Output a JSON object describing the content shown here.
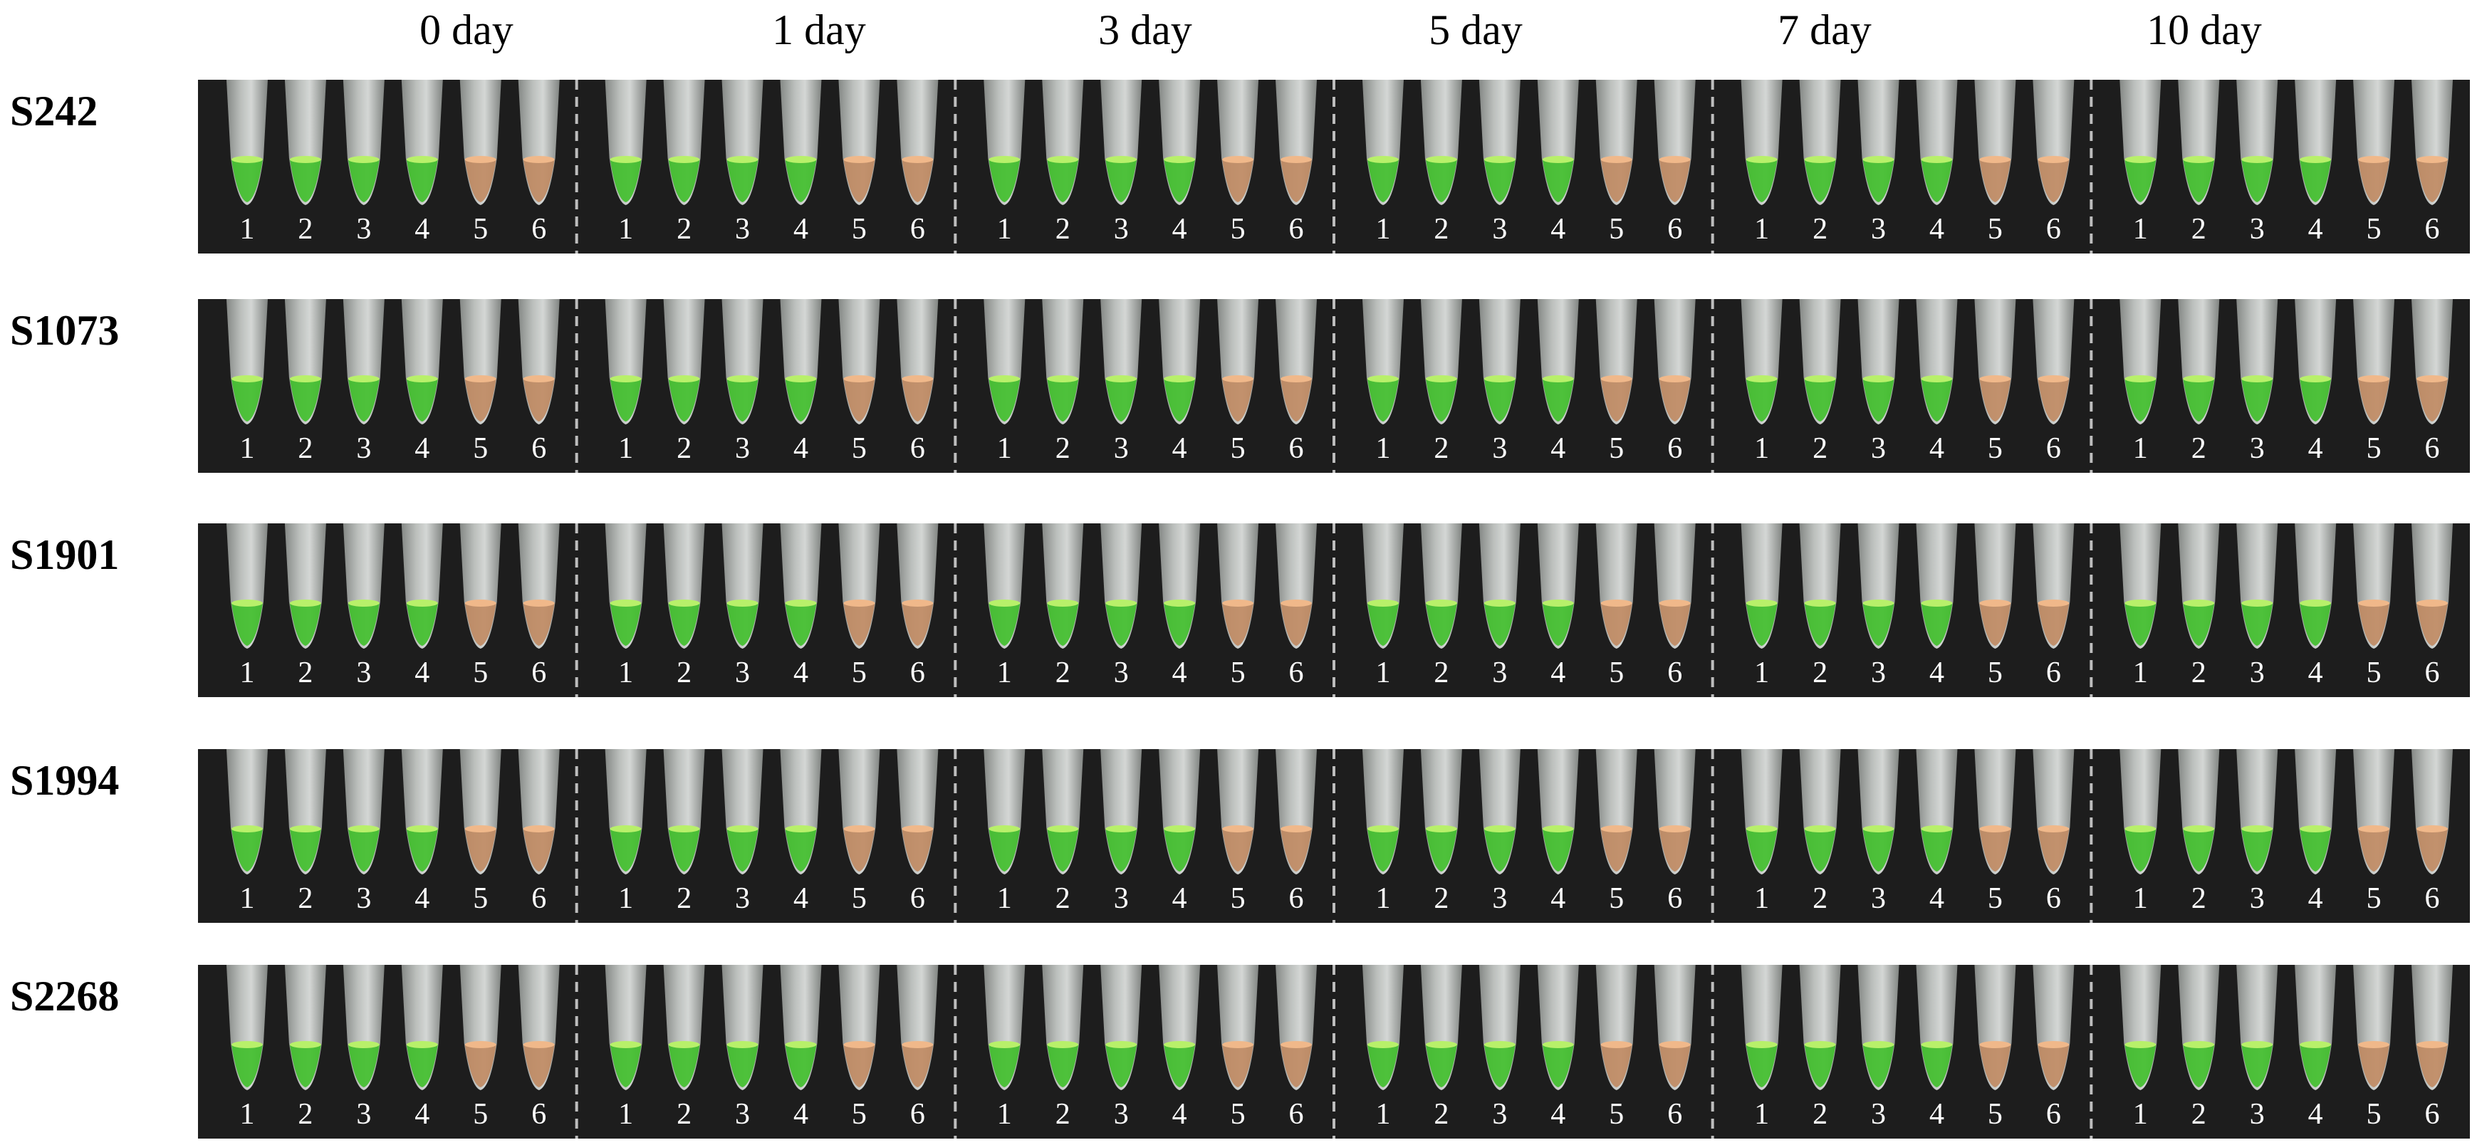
{
  "days": [
    "0 day",
    "1 day",
    "3 day",
    "5 day",
    "7 day",
    "10 day"
  ],
  "samples": [
    "S242",
    "S1073",
    "S1901",
    "S1994",
    "S2268"
  ],
  "tube_numbers": [
    "1",
    "2",
    "3",
    "4",
    "5",
    "6"
  ],
  "tube_colors": {
    "positive_green": "#3fbf2a",
    "negative_orange": "#c08a62",
    "tube_body": "#c9cdca",
    "background": "#1d1d1d",
    "divider": "#bdbdbd"
  },
  "tube_results": [
    "green",
    "green",
    "green",
    "green",
    "orange",
    "orange"
  ]
}
